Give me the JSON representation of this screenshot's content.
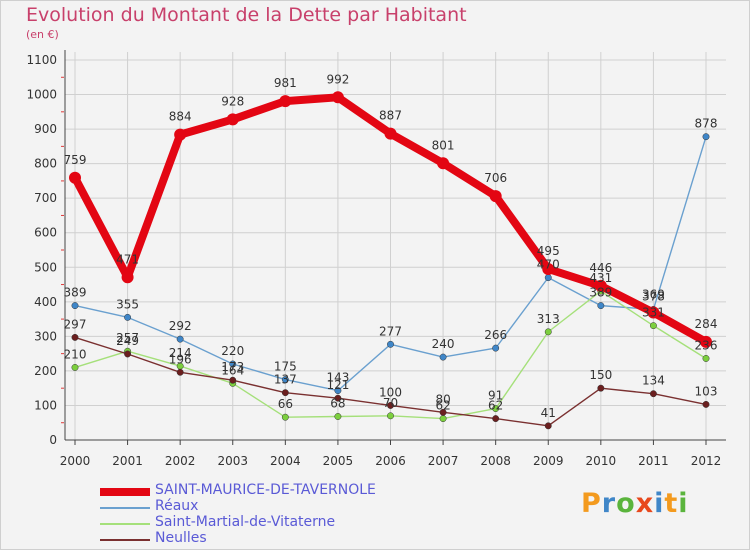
{
  "title": "Evolution du Montant de la Dette par Habitant",
  "subtitle": "(en €)",
  "brand": {
    "text": "Proxiti",
    "letter_colors": [
      "#f39a1e",
      "#3f86c8",
      "#5ab43c",
      "#e8481c",
      "#3f86c8",
      "#f39a1e",
      "#5ab43c"
    ]
  },
  "chart_data": {
    "type": "line",
    "categories": [
      "2000",
      "2001",
      "2002",
      "2003",
      "2004",
      "2005",
      "2006",
      "2007",
      "2008",
      "2009",
      "2010",
      "2011",
      "2012"
    ],
    "ylim": [
      0,
      1100
    ],
    "yticks": [
      "0",
      "100",
      "200",
      "300",
      "400",
      "500",
      "600",
      "700",
      "800",
      "900",
      "1000",
      "1100"
    ],
    "grid": true,
    "legend_position": "bottom-left",
    "series": [
      {
        "name": "SAINT-MAURICE-DE-TAVERNOLE",
        "color": "#e30613",
        "marker_color": "#e30613",
        "emphasis": true,
        "values": [
          759,
          471,
          884,
          928,
          981,
          992,
          887,
          801,
          706,
          495,
          446,
          369,
          284
        ]
      },
      {
        "name": "Réaux",
        "color": "#6aa0cf",
        "marker_color": "#3f86c8",
        "values": [
          389,
          355,
          292,
          220,
          175,
          143,
          277,
          240,
          266,
          470,
          389,
          378,
          878
        ]
      },
      {
        "name": "Saint-Martial-de-Vitaterne",
        "color": "#a5e07a",
        "marker_color": "#7ccf3e",
        "values": [
          210,
          257,
          214,
          164,
          66,
          68,
          70,
          62,
          91,
          313,
          431,
          331,
          236
        ]
      },
      {
        "name": "Neulles",
        "color": "#7a3030",
        "marker_color": "#6b1f1f",
        "values": [
          297,
          249,
          196,
          173,
          137,
          121,
          100,
          80,
          62,
          41,
          150,
          134,
          103
        ]
      }
    ]
  }
}
